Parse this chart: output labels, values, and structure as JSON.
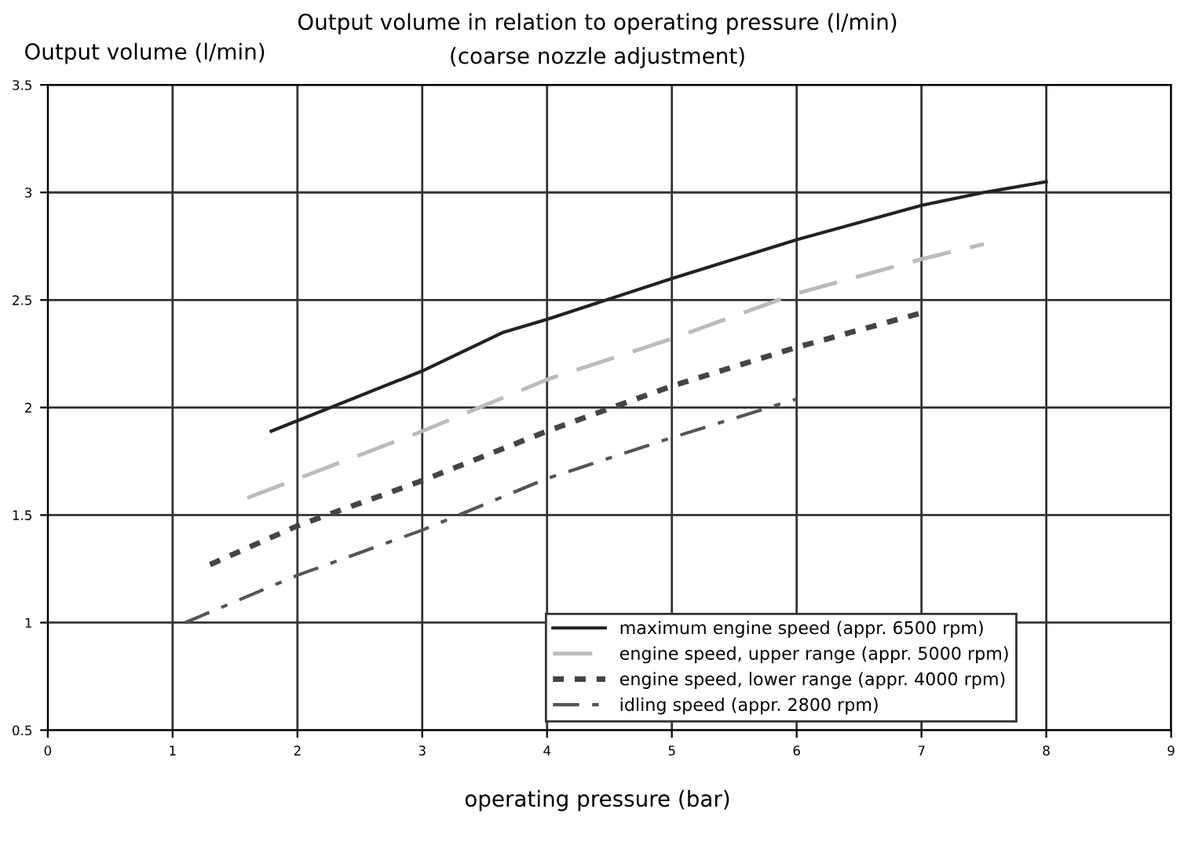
{
  "chart_data": {
    "type": "line",
    "title": "Output volume in relation to operating pressure (l/min)",
    "subtitle": "(coarse nozzle adjustment)",
    "xlabel": "operating pressure (bar)",
    "ylabel": "Output volume (l/min)",
    "xlim": [
      0,
      9
    ],
    "xticks": [
      0,
      1,
      2,
      3,
      4,
      5,
      6,
      7,
      8,
      9
    ],
    "ylim": [
      0.5,
      3.5
    ],
    "yticks": [
      0.5,
      1,
      1.5,
      2,
      2.5,
      3,
      3.5
    ],
    "grid": true,
    "legend": "bottom right",
    "series": [
      {
        "name": "maximum engine speed (appr. 6500 rpm)",
        "color": "#222222",
        "line_style": "solid",
        "x": [
          1.79,
          3,
          3.65,
          4,
          5,
          6,
          7,
          7.5,
          8
        ],
        "values": [
          1.89,
          2.17,
          2.35,
          2.41,
          2.6,
          2.78,
          2.94,
          3.0,
          3.05
        ]
      },
      {
        "name": "engine speed, upper range (appr. 5000 rpm)",
        "color": "#bbbbbb",
        "line_style": "dashed",
        "x": [
          1.6,
          3,
          4,
          5,
          6,
          7,
          7.5
        ],
        "values": [
          1.58,
          1.89,
          2.13,
          2.32,
          2.53,
          2.69,
          2.76
        ]
      },
      {
        "name": "engine speed, lower range (appr. 4000 rpm)",
        "color": "#444444",
        "line_style": "dotted",
        "x": [
          1.3,
          2,
          3,
          4,
          5,
          6,
          7
        ],
        "values": [
          1.27,
          1.45,
          1.66,
          1.89,
          2.1,
          2.28,
          2.44
        ]
      },
      {
        "name": "idling speed (appr. 2800 rpm)",
        "color": "#555555",
        "line_style": "dashdot",
        "x": [
          1.1,
          2,
          3,
          4,
          5,
          6
        ],
        "values": [
          1.0,
          1.22,
          1.43,
          1.67,
          1.86,
          2.04
        ]
      }
    ]
  }
}
